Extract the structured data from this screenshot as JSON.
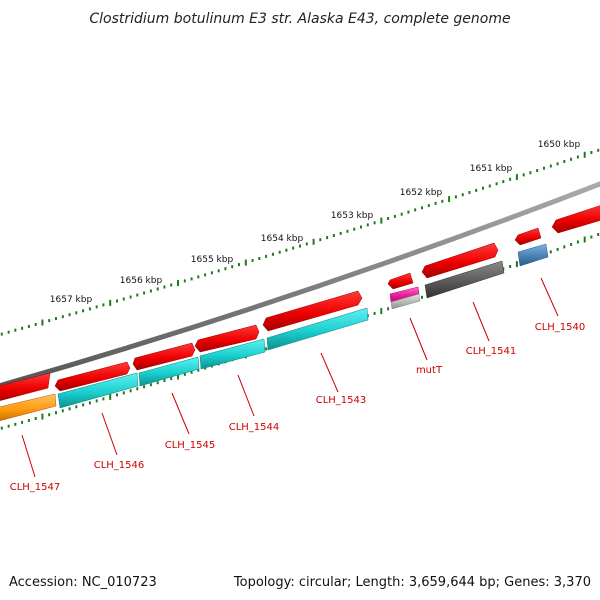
{
  "title": "Clostridium botulinum E3 str. Alaska E43, complete genome",
  "footer": {
    "accession": "Accession: NC_010723",
    "summary": "Topology: circular; Length: 3,659,644 bp; Genes: 3,370"
  },
  "scale_labels": [
    "1650 kbp",
    "1651 kbp",
    "1652 kbp",
    "1653 kbp",
    "1654 kbp",
    "1655 kbp",
    "1656 kbp",
    "1657 kbp"
  ],
  "gene_labels": [
    "CLH_1540",
    "CLH_1541",
    "mutT",
    "CLH_1543",
    "CLH_1544",
    "CLH_1545",
    "CLH_1546",
    "CLH_1547"
  ],
  "colors": {
    "backbone": "#808080",
    "scale_ticks": "#1e7b1e",
    "gene_red": "#ee0000",
    "cds_cyan": "#1ccfcf",
    "cds_orange": "#ff9a10",
    "cds_gray": "#5a5a5a",
    "cds_steelblue": "#4a82b4",
    "cds_magenta": "#ee1a9c",
    "cds_lightgray": "#b8b8b8",
    "label_red": "#cc0000"
  }
}
